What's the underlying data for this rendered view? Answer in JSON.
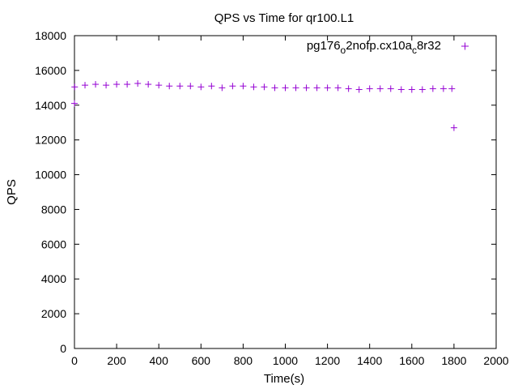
{
  "chart_data": {
    "type": "scatter",
    "title": "QPS vs Time for qr100.L1",
    "xlabel": "Time(s)",
    "ylabel": "QPS",
    "xlim": [
      0,
      2000
    ],
    "ylim": [
      0,
      18000
    ],
    "x_ticks": [
      0,
      200,
      400,
      600,
      800,
      1000,
      1200,
      1400,
      1600,
      1800,
      2000
    ],
    "y_ticks": [
      0,
      2000,
      4000,
      6000,
      8000,
      10000,
      12000,
      14000,
      16000,
      18000
    ],
    "grid": false,
    "legend_position": "top-right",
    "marker": "plus",
    "series": [
      {
        "legend": {
          "base": "pg176",
          "sub1": "o",
          "mid": "2nofp.cx10a",
          "sub2": "c",
          "tail": "8r32"
        },
        "color": "#9400d3",
        "x": [
          0,
          1,
          50,
          100,
          150,
          200,
          250,
          300,
          350,
          400,
          450,
          500,
          550,
          600,
          650,
          700,
          750,
          800,
          850,
          900,
          950,
          1000,
          1050,
          1100,
          1150,
          1200,
          1250,
          1300,
          1350,
          1400,
          1450,
          1500,
          1550,
          1600,
          1650,
          1700,
          1750,
          1790,
          1800
        ],
        "y": [
          14100,
          15050,
          15150,
          15200,
          15150,
          15200,
          15200,
          15250,
          15200,
          15150,
          15100,
          15100,
          15100,
          15050,
          15100,
          15000,
          15100,
          15100,
          15050,
          15050,
          15000,
          15000,
          15000,
          15000,
          15000,
          15000,
          15000,
          14950,
          14900,
          14950,
          14950,
          14950,
          14900,
          14900,
          14900,
          14950,
          14950,
          14950,
          12700
        ]
      }
    ]
  }
}
